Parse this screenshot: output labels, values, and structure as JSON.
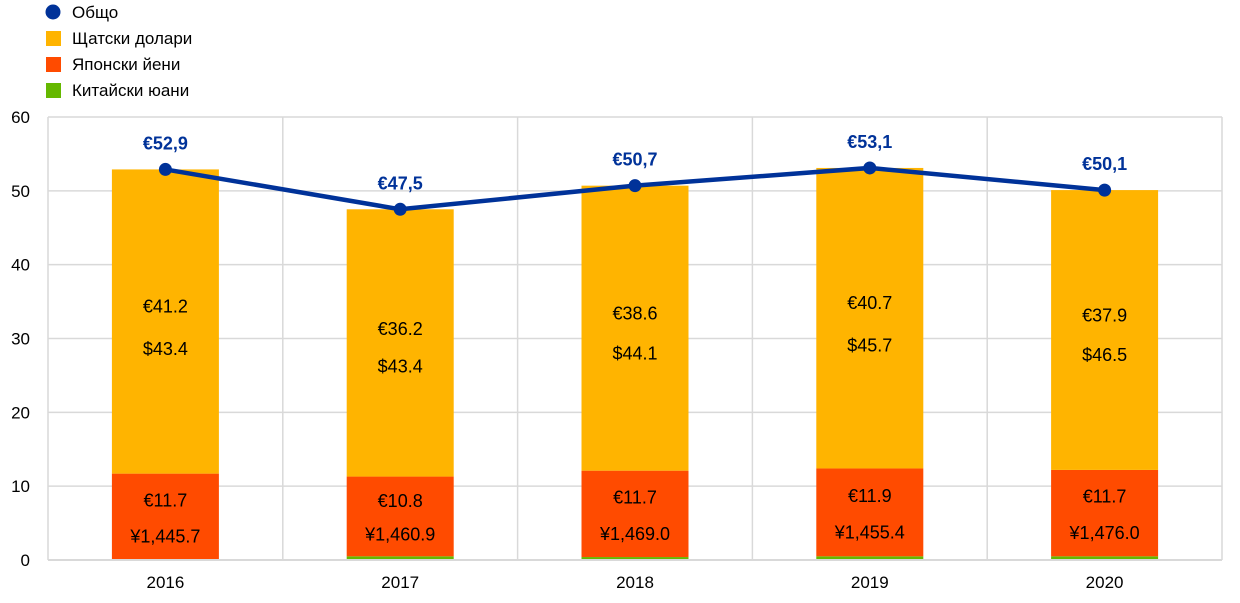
{
  "chart_data": {
    "type": "bar",
    "stacked": true,
    "categories": [
      "2016",
      "2017",
      "2018",
      "2019",
      "2020"
    ],
    "ylim": [
      0,
      60
    ],
    "yticks": [
      0,
      10,
      20,
      30,
      40,
      50,
      60
    ],
    "grid": true,
    "legend_position": "top-left",
    "series": [
      {
        "name": "Китайски юани",
        "color": "#65B800",
        "values": [
          0.0,
          0.5,
          0.4,
          0.5,
          0.5
        ]
      },
      {
        "name": "Японски йени",
        "color": "#FF4B00",
        "values": [
          11.7,
          10.8,
          11.7,
          11.9,
          11.7
        ],
        "labels_eur": [
          "€11.7",
          "€10.8",
          "€11.7",
          "€11.9",
          "€11.7"
        ],
        "labels_local": [
          "¥1,445.7",
          "¥1,460.9",
          "¥1,469.0",
          "¥1,455.4",
          "¥1,476.0"
        ]
      },
      {
        "name": "Щатски долари",
        "color": "#FFB400",
        "values": [
          41.2,
          36.2,
          38.6,
          40.7,
          37.9
        ],
        "labels_eur": [
          "€41.2",
          "€36.2",
          "€38.6",
          "€40.7",
          "€37.9"
        ],
        "labels_local": [
          "$43.4",
          "$43.4",
          "$44.1",
          "$45.7",
          "$46.5"
        ]
      }
    ],
    "line": {
      "name": "Общо",
      "color": "#003299",
      "values": [
        52.9,
        47.5,
        50.7,
        53.1,
        50.1
      ],
      "labels": [
        "€52,9",
        "€47,5",
        "€50,7",
        "€53,1",
        "€50,1"
      ]
    },
    "legend_order": [
      "Общо",
      "Щатски долари",
      "Японски йени",
      "Китайски юани"
    ]
  }
}
